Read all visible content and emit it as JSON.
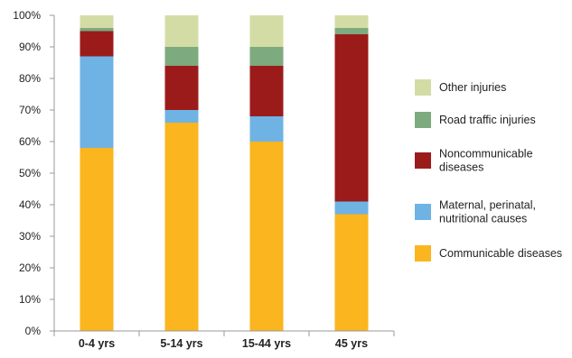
{
  "chart_data": {
    "type": "bar",
    "stacked": true,
    "categories": [
      "0-4 yrs",
      "5-14 yrs",
      "15-44 yrs",
      "45 yrs"
    ],
    "ylim": [
      0,
      100
    ],
    "yticks": [
      "0%",
      "10%",
      "20%",
      "30%",
      "40%",
      "50%",
      "60%",
      "70%",
      "80%",
      "90%",
      "100%"
    ],
    "grid": false,
    "legend_position": "right",
    "series": [
      {
        "name": "Communicable diseases",
        "color": "#FAB51F",
        "values": [
          58,
          66,
          60,
          37
        ]
      },
      {
        "name": "Maternal, perinatal, nutritional causes",
        "legend_lines": [
          "Maternal,  perinatal,",
          "nutritional causes"
        ],
        "color": "#6FB3E4",
        "values": [
          29,
          4,
          8,
          4
        ]
      },
      {
        "name": "Noncommunicable diseases",
        "legend_lines": [
          "Noncommunicable",
          "diseases"
        ],
        "color": "#9B1B1B",
        "values": [
          8,
          14,
          16,
          53
        ]
      },
      {
        "name": "Road traffic injuries",
        "color": "#7DAA7E",
        "values": [
          1,
          6,
          6,
          2
        ]
      },
      {
        "name": "Other injuries",
        "color": "#D4DCA6",
        "values": [
          4,
          10,
          10,
          4
        ]
      }
    ]
  }
}
